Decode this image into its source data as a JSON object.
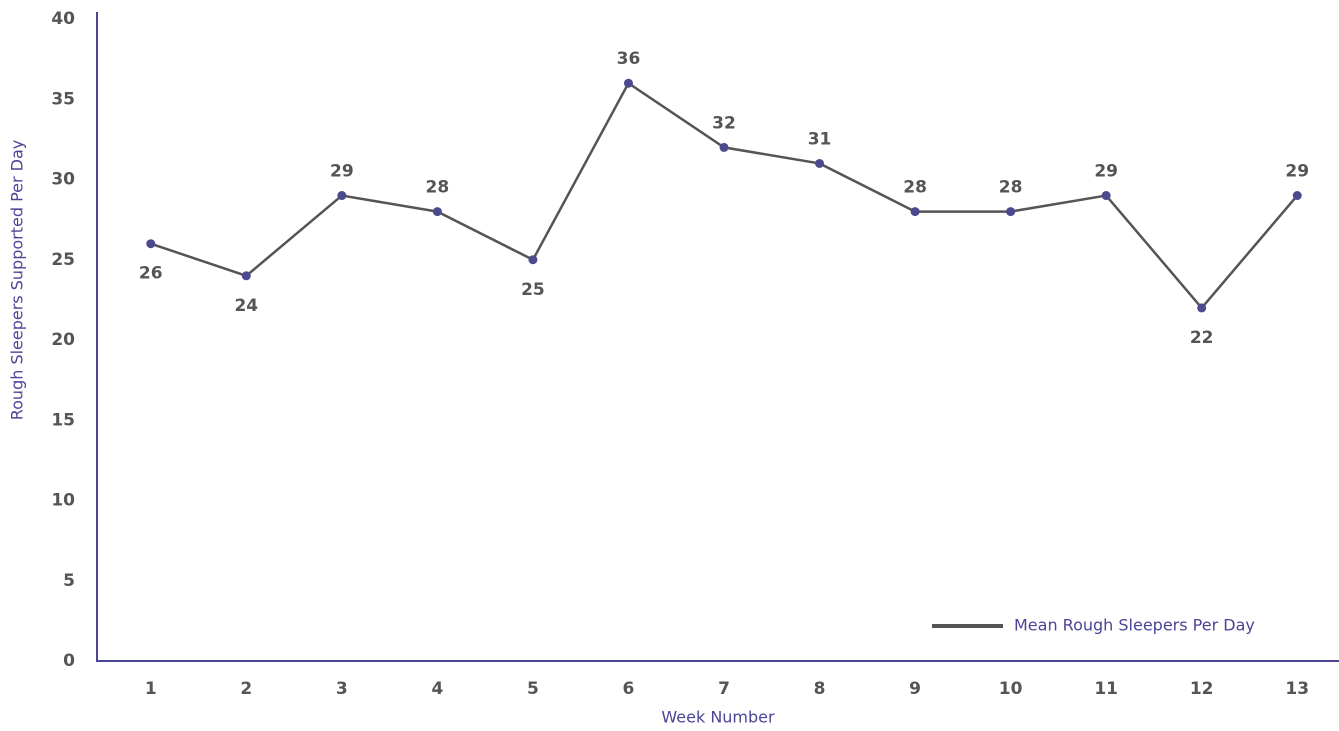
{
  "chart_data": {
    "type": "line",
    "x_label": "Week Number",
    "y_label": "Rough Sleepers Supported Per Day",
    "categories": [
      "1",
      "2",
      "3",
      "4",
      "5",
      "6",
      "7",
      "8",
      "9",
      "10",
      "11",
      "12",
      "13"
    ],
    "series": [
      {
        "name": "Mean Rough Sleepers Per Day",
        "color": "#555555",
        "marker_color": "#4b4a8f",
        "values": [
          26,
          24,
          29,
          28,
          25,
          36,
          32,
          31,
          28,
          28,
          29,
          22,
          29
        ]
      }
    ],
    "ylim": [
      0,
      40
    ],
    "yticks": [
      0,
      5,
      10,
      15,
      20,
      25,
      30,
      35,
      40
    ],
    "grid": false,
    "legend": "lower right",
    "axis_color": "#4b4596"
  }
}
